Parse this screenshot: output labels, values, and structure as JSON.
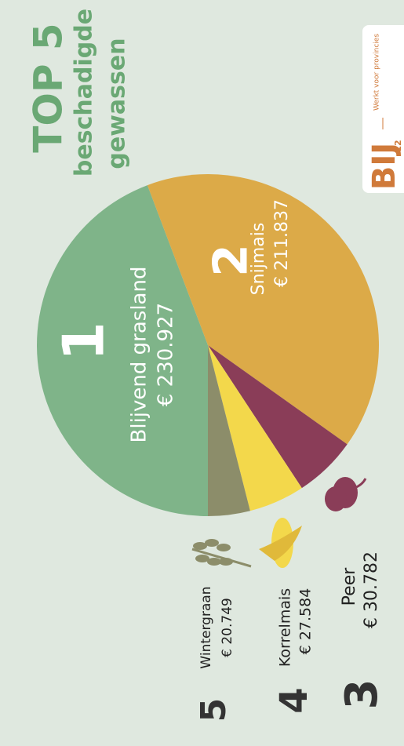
{
  "chart_data": {
    "type": "pie",
    "title": "TOP 5",
    "subtitle": [
      "beschadigde",
      "gewassen"
    ],
    "categories": [
      "Blijvend grasland",
      "Snijmais",
      "Peer",
      "Korrelmais",
      "Wintergraan"
    ],
    "ranks": [
      "1",
      "2",
      "3",
      "4",
      "5"
    ],
    "values": [
      230927,
      211837,
      30782,
      27584,
      20749
    ],
    "value_labels": [
      "€ 230.927",
      "€ 211.837",
      "€ 30.782",
      "€ 27.584",
      "€ 20.749"
    ],
    "colors": [
      "#7fb489",
      "#dcaa48",
      "#8a3d58",
      "#f3d84b",
      "#8c8d6a"
    ]
  },
  "logo": {
    "name": "BIJ",
    "number": "12",
    "tagline": "Werkt voor provincies"
  }
}
